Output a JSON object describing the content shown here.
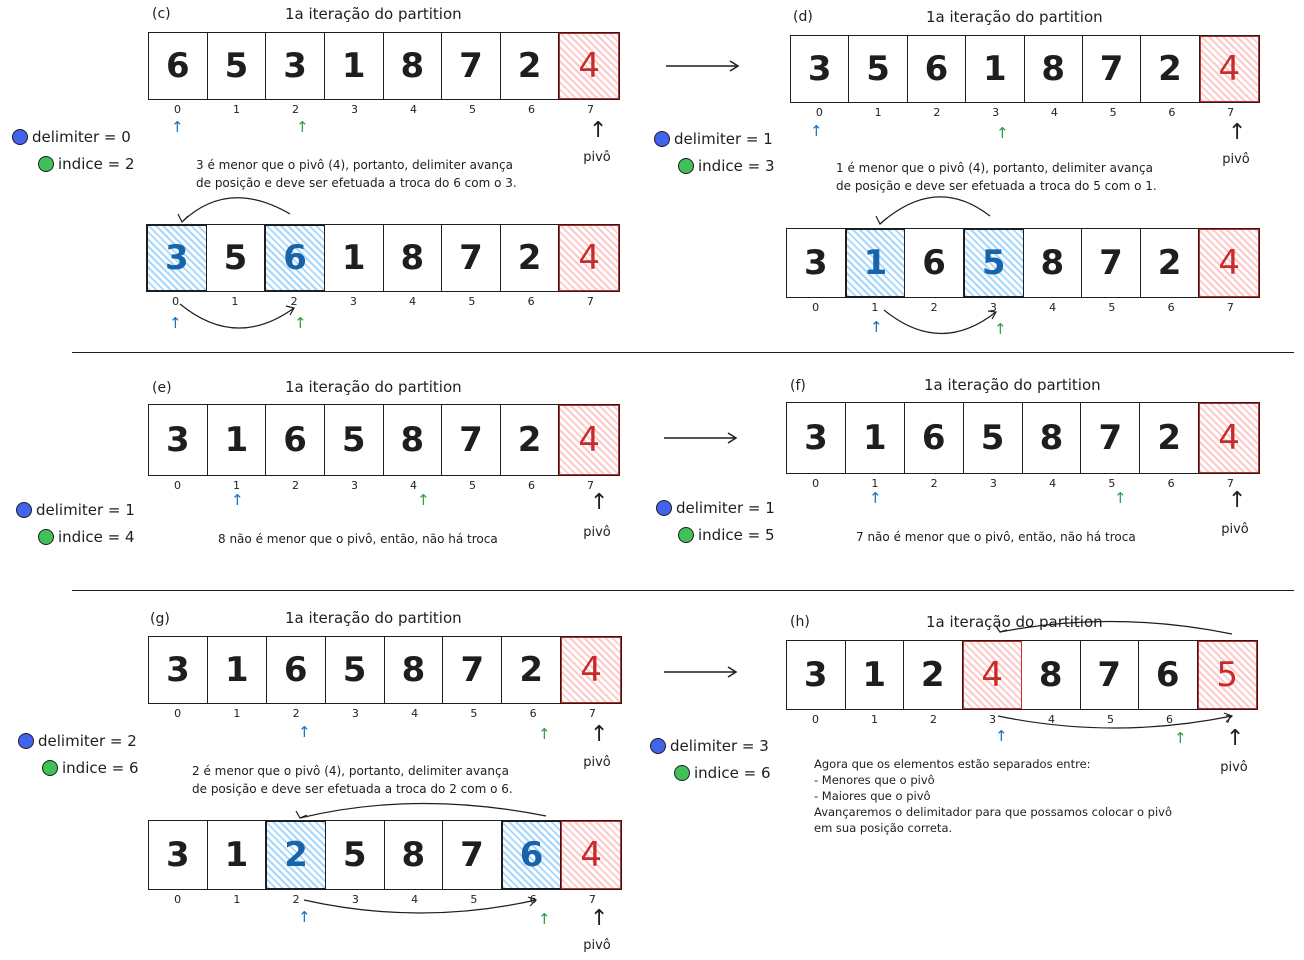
{
  "legend_labels": {
    "delimiter": "delimiter = ",
    "indice": "indice = "
  },
  "pivot_label": "pivô",
  "indices": [
    "0",
    "1",
    "2",
    "3",
    "4",
    "5",
    "6",
    "7"
  ],
  "colors": {
    "pivot": "#c92a2a",
    "pivot_fill": "#ffc9c9",
    "swap_fill": "#a5d8ff",
    "delimiter_dot": "#4263eb",
    "indice_dot": "#40c057"
  },
  "panels": {
    "c": {
      "tag": "(c)",
      "title": "1a iteração do partition",
      "top": [
        "6",
        "5",
        "3",
        "1",
        "8",
        "7",
        "2",
        "4"
      ],
      "delimiter": "delimiter = 0",
      "indice": "indice = 2",
      "note": "3 é menor que o pivô (4), portanto, delimiter avança\nde posição e deve ser efetuada a troca do 6 com o 3.",
      "bottom": [
        "3",
        "5",
        "6",
        "1",
        "8",
        "7",
        "2",
        "4"
      ]
    },
    "d": {
      "tag": "(d)",
      "title": "1a iteração do partition",
      "top": [
        "3",
        "5",
        "6",
        "1",
        "8",
        "7",
        "2",
        "4"
      ],
      "delimiter": "delimiter = 1",
      "indice": "indice = 3",
      "note": "1 é menor que o pivô (4), portanto, delimiter avança\nde posição e deve ser efetuada a troca do 5 com o 1.",
      "bottom": [
        "3",
        "1",
        "6",
        "5",
        "8",
        "7",
        "2",
        "4"
      ]
    },
    "e": {
      "tag": "(e)",
      "title": "1a iteração do partition",
      "top": [
        "3",
        "1",
        "6",
        "5",
        "8",
        "7",
        "2",
        "4"
      ],
      "delimiter": "delimiter = 1",
      "indice": "indice = 4",
      "note": "8 não é menor que o pivô, então, não há troca"
    },
    "f": {
      "tag": "(f)",
      "title": "1a iteração do partition",
      "top": [
        "3",
        "1",
        "6",
        "5",
        "8",
        "7",
        "2",
        "4"
      ],
      "delimiter": "delimiter = 1",
      "indice": "indice = 5",
      "note": "7 não é menor que o pivô, então, não há troca"
    },
    "g": {
      "tag": "(g)",
      "title": "1a iteração do partition",
      "top": [
        "3",
        "1",
        "6",
        "5",
        "8",
        "7",
        "2",
        "4"
      ],
      "delimiter": "delimiter = 2",
      "indice": "indice = 6",
      "note": "2 é menor que o pivô (4), portanto, delimiter avança\nde posição e deve ser efetuada a troca do 2 com o 6.",
      "bottom": [
        "3",
        "1",
        "2",
        "5",
        "8",
        "7",
        "6",
        "4"
      ]
    },
    "h": {
      "tag": "(h)",
      "title": "1a iteração do partition",
      "top": [
        "3",
        "1",
        "2",
        "4",
        "8",
        "7",
        "6",
        "5"
      ],
      "delimiter": "delimiter = 3",
      "indice": "indice = 6",
      "note": "Agora que os elementos estão separados entre:\n- Menores que o pivô\n- Maiores que o pivô\nAvançaremos o delimitador para que possamos colocar o pivô\nem sua posição correta."
    }
  }
}
